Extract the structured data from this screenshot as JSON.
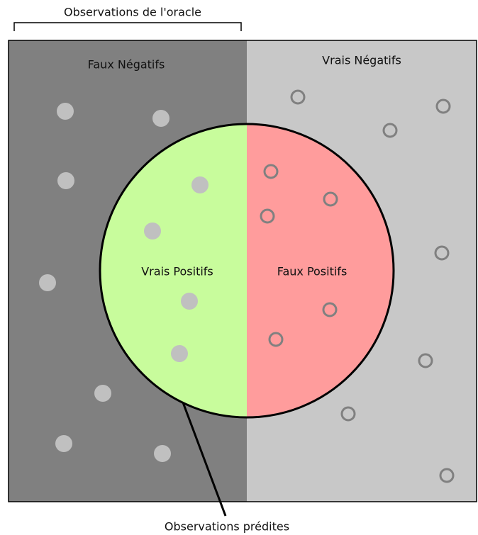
{
  "oracle_label": "Observations de l'oracle",
  "regions": {
    "false_negatives": "Faux Négatifs",
    "true_negatives": "Vrais Négatifs",
    "true_positives": "Vrais Positifs",
    "false_positives": "Faux Positifs"
  },
  "predicted_label": "Observations prédites"
}
